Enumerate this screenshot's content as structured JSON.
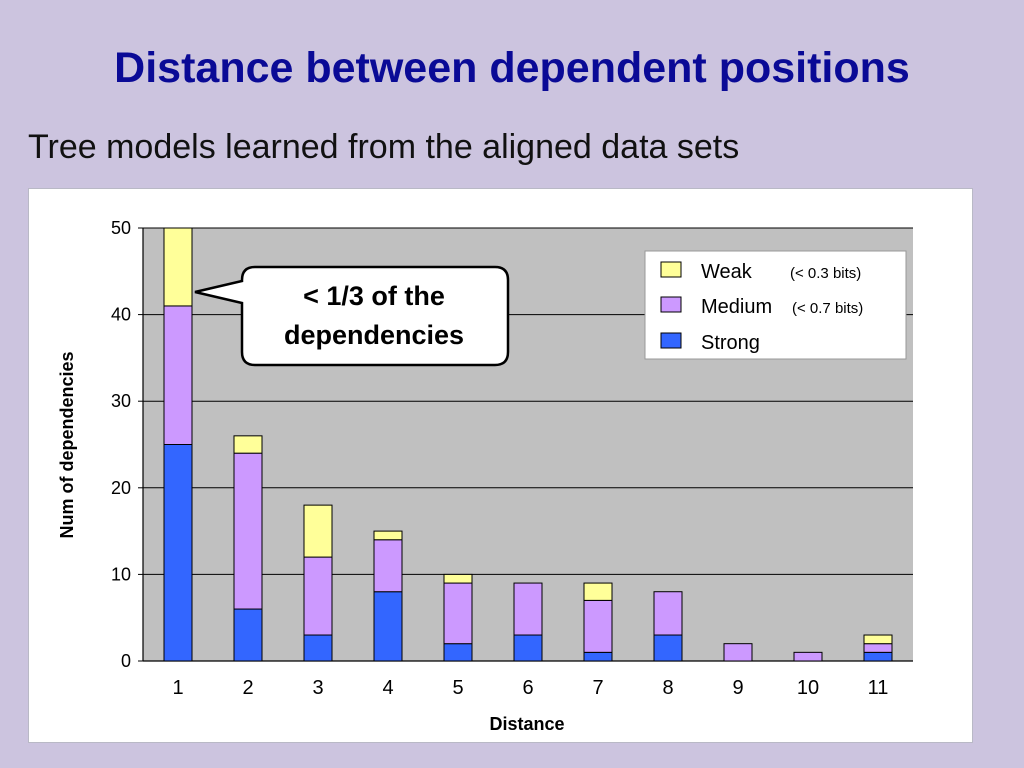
{
  "slide": {
    "title": "Distance between dependent positions",
    "subtitle": "Tree models learned from the aligned data sets"
  },
  "colors": {
    "background": "#ccc4df",
    "title": "#0a0a96",
    "plot_area": "#c0c0c0",
    "weak": "#ffff99",
    "medium": "#cc99ff",
    "strong": "#3366ff"
  },
  "callout": {
    "line1": "< 1/3 of the",
    "line2": "dependencies"
  },
  "legend": {
    "weak_label": "Weak",
    "weak_note": "(< 0.3 bits)",
    "medium_label": "Medium",
    "medium_note": "(< 0.7 bits)",
    "strong_label": "Strong"
  },
  "chart_data": {
    "type": "bar",
    "stacked": true,
    "categories": [
      "1",
      "2",
      "3",
      "4",
      "5",
      "6",
      "7",
      "8",
      "9",
      "10",
      "11"
    ],
    "series": [
      {
        "name": "Strong",
        "values": [
          25,
          6,
          3,
          8,
          2,
          3,
          1,
          3,
          0,
          0,
          1
        ]
      },
      {
        "name": "Medium",
        "values": [
          16,
          18,
          9,
          6,
          7,
          6,
          6,
          5,
          2,
          1,
          1
        ]
      },
      {
        "name": "Weak",
        "values": [
          9,
          2,
          6,
          1,
          1,
          0,
          2,
          0,
          0,
          0,
          1
        ]
      }
    ],
    "xlabel": "Distance",
    "ylabel": "Num of dependencies",
    "ylim": [
      0,
      50
    ],
    "yticks": [
      "0",
      "10",
      "20",
      "30",
      "40",
      "50"
    ],
    "grid": true,
    "legend_position": "top-right"
  }
}
